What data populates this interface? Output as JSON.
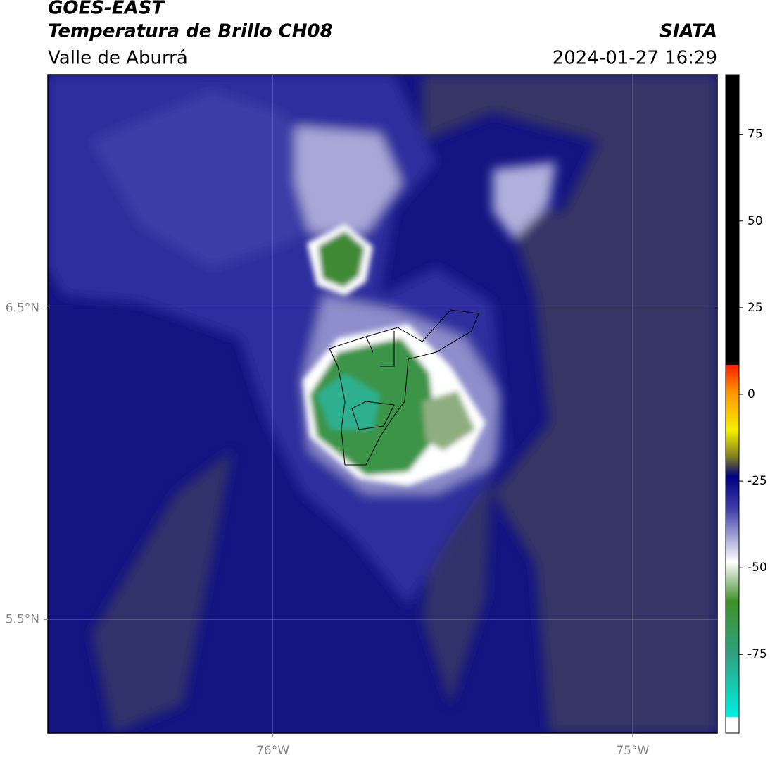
{
  "header": {
    "title": "GOES-EAST",
    "subtitle": "Temperatura de Brillo CH08",
    "region": "Valle de Aburrá",
    "source": "SIATA",
    "datetime": "2024-01-27 16:29"
  },
  "map": {
    "xlim": [
      -76.625,
      -74.765
    ],
    "ylim": [
      5.135,
      7.25
    ],
    "xticks": [
      {
        "value": -76,
        "label": "76°W"
      },
      {
        "value": -75,
        "label": "75°W"
      }
    ],
    "yticks": [
      {
        "value": 6.5,
        "label": "6.5°N"
      },
      {
        "value": 5.5,
        "label": "5.5°N"
      }
    ],
    "grid": true
  },
  "colorbar": {
    "lim": [
      -97.7,
      92.2
    ],
    "ticks": [
      75,
      50,
      25,
      0,
      -25,
      -50,
      -75
    ]
  }
}
